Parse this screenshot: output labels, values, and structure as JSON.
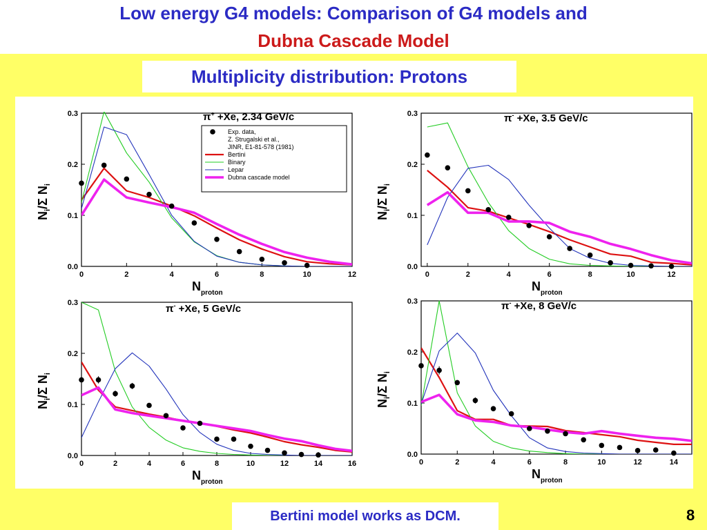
{
  "header": {
    "title_line1": "Low energy G4 models: Comparison of G4 models and",
    "title_line2": "Dubna Cascade Model"
  },
  "subtitle": "Multiplicity distribution: Protons",
  "footer": "Bertini model works as DCM.",
  "page_number": "8",
  "colors": {
    "Bertini": "#dd1111",
    "Binary": "#22cc22",
    "Lepar": "#2233bb",
    "DCM": "#ee22ee",
    "exp": "#000000"
  },
  "chart_data": [
    {
      "type": "line",
      "title": "π+ +Xe, 2.34 GeV/c",
      "title_parts": [
        "π",
        "+",
        " +Xe, 2.34 GeV/c"
      ],
      "xlabel": "N",
      "xlabel_sub": "proton",
      "ylabel_parts": [
        "N",
        "i",
        "/Σ N",
        "i"
      ],
      "xlim": [
        0,
        12
      ],
      "ylim": [
        0,
        0.3
      ],
      "xticks": [
        0,
        2,
        4,
        6,
        8,
        10,
        12
      ],
      "xtick_labels": [
        "0",
        "2",
        "4",
        "6",
        "8",
        "10",
        "12"
      ],
      "yticks": [
        0,
        0.1,
        0.2,
        0.3
      ],
      "ytick_labels": [
        "0.0",
        "0.1",
        "0.2",
        "0.3"
      ],
      "legend": {
        "placement": "top-right",
        "entries": [
          {
            "key": "exp",
            "kind": "marker",
            "lines": [
              "Exp. data,",
              "Z. Strugalski et al.,",
              "JINR, E1-81-578 (1981)"
            ]
          },
          {
            "key": "Bertini",
            "kind": "line",
            "lines": [
              "Bertini"
            ]
          },
          {
            "key": "Binary",
            "kind": "line",
            "lines": [
              "Binary"
            ]
          },
          {
            "key": "Lepar",
            "kind": "line",
            "lines": [
              "Lepar"
            ]
          },
          {
            "key": "DCM",
            "kind": "line",
            "lines": [
              "Dubna cascade model"
            ]
          }
        ]
      },
      "exp": {
        "x": [
          0,
          1,
          2,
          3,
          4,
          5,
          6,
          7,
          8,
          9,
          10
        ],
        "y": [
          0.163,
          0.198,
          0.171,
          0.141,
          0.118,
          0.085,
          0.053,
          0.029,
          0.014,
          0.007,
          0.002
        ],
        "err": [
          0.003,
          0.003,
          0.003,
          0.003,
          0.003,
          0.003,
          0.003,
          0.002,
          0.002,
          0.001,
          0.001
        ]
      },
      "series": [
        {
          "key": "Bertini",
          "x": [
            0,
            1,
            2,
            3,
            4,
            5,
            6,
            7,
            8,
            9,
            10,
            11,
            12
          ],
          "y": [
            0.13,
            0.192,
            0.148,
            0.135,
            0.118,
            0.099,
            0.075,
            0.052,
            0.034,
            0.019,
            0.009,
            0.005,
            0.003
          ]
        },
        {
          "key": "Binary",
          "x": [
            0,
            1,
            2,
            3,
            4,
            5,
            6,
            7,
            8,
            9,
            10,
            11,
            12
          ],
          "y": [
            0.125,
            0.303,
            0.222,
            0.165,
            0.095,
            0.048,
            0.021,
            0.008,
            0.003,
            0.001,
            0.0,
            0.0,
            0.0
          ]
        },
        {
          "key": "Lepar",
          "x": [
            0,
            1,
            2,
            3,
            4,
            5,
            6,
            7,
            8,
            9,
            10,
            11,
            12
          ],
          "y": [
            0.113,
            0.273,
            0.258,
            0.18,
            0.1,
            0.049,
            0.02,
            0.008,
            0.003,
            0.001,
            0.0,
            0.0,
            0.0
          ]
        },
        {
          "key": "DCM",
          "x": [
            0,
            1,
            2,
            3,
            4,
            5,
            6,
            7,
            8,
            9,
            10,
            11,
            12
          ],
          "y": [
            0.1,
            0.17,
            0.135,
            0.125,
            0.116,
            0.105,
            0.083,
            0.062,
            0.044,
            0.028,
            0.017,
            0.009,
            0.004
          ]
        }
      ]
    },
    {
      "type": "line",
      "title": "π- +Xe, 3.5 GeV/c",
      "title_parts": [
        "π",
        "-",
        " +Xe, 3.5 GeV/c"
      ],
      "xlabel": "N",
      "xlabel_sub": "proton",
      "ylabel_parts": [
        "N",
        "i",
        "/Σ N",
        "i"
      ],
      "xlim": [
        -0.3,
        13
      ],
      "ylim": [
        0,
        0.3
      ],
      "xticks": [
        0,
        2,
        4,
        6,
        8,
        10,
        12
      ],
      "xtick_labels": [
        "0",
        "2",
        "4",
        "6",
        "8",
        "10",
        "12"
      ],
      "yticks": [
        0,
        0.1,
        0.2,
        0.3
      ],
      "ytick_labels": [
        "0.0",
        "0.1",
        "0.2",
        "0.3"
      ],
      "exp": {
        "x": [
          0,
          1,
          2,
          3,
          4,
          5,
          6,
          7,
          8,
          9,
          10,
          11,
          12
        ],
        "y": [
          0.218,
          0.193,
          0.148,
          0.111,
          0.096,
          0.08,
          0.058,
          0.035,
          0.022,
          0.007,
          0.002,
          0.001,
          0.0
        ],
        "err": [
          0.003,
          0.003,
          0.003,
          0.004,
          0.003,
          0.003,
          0.003,
          0.004,
          0.003,
          0.002,
          0.001,
          0.001,
          0.0
        ]
      },
      "series": [
        {
          "key": "Bertini",
          "x": [
            0,
            1,
            2,
            3,
            4,
            5,
            6,
            7,
            8,
            9,
            10,
            11,
            12,
            13
          ],
          "y": [
            0.188,
            0.155,
            0.115,
            0.108,
            0.095,
            0.082,
            0.068,
            0.052,
            0.038,
            0.024,
            0.02,
            0.008,
            0.006,
            0.003
          ]
        },
        {
          "key": "Binary",
          "x": [
            0,
            1,
            2,
            3,
            4,
            5,
            6,
            7,
            8,
            9,
            10,
            11,
            12,
            13
          ],
          "y": [
            0.273,
            0.281,
            0.195,
            0.125,
            0.07,
            0.035,
            0.014,
            0.005,
            0.002,
            0.001,
            0.0,
            0.0,
            0.0,
            0.0
          ]
        },
        {
          "key": "Lepar",
          "x": [
            0,
            1,
            2,
            3,
            4,
            5,
            6,
            7,
            8,
            9,
            10,
            11,
            12,
            13
          ],
          "y": [
            0.042,
            0.135,
            0.192,
            0.198,
            0.17,
            0.12,
            0.075,
            0.035,
            0.016,
            0.006,
            0.002,
            0.001,
            0.0,
            0.0
          ]
        },
        {
          "key": "DCM",
          "x": [
            0,
            1,
            2,
            3,
            4,
            5,
            6,
            7,
            8,
            9,
            10,
            11,
            12,
            13
          ],
          "y": [
            0.12,
            0.145,
            0.105,
            0.105,
            0.088,
            0.088,
            0.085,
            0.068,
            0.058,
            0.044,
            0.034,
            0.022,
            0.012,
            0.006
          ]
        }
      ]
    },
    {
      "type": "line",
      "title": "π- +Xe, 5 GeV/c",
      "title_parts": [
        "π",
        "-",
        " +Xe, 5 GeV/c"
      ],
      "xlabel": "N",
      "xlabel_sub": "proton",
      "ylabel_parts": [
        "N",
        "i",
        "/Σ N",
        "i"
      ],
      "xlim": [
        0,
        16
      ],
      "ylim": [
        0,
        0.3
      ],
      "xticks": [
        0,
        2,
        4,
        6,
        8,
        10,
        12,
        14,
        16
      ],
      "xtick_labels": [
        "0",
        "2",
        "4",
        "6",
        "8",
        "10",
        "12",
        "14",
        "16"
      ],
      "yticks": [
        0,
        0.1,
        0.2,
        0.3
      ],
      "ytick_labels": [
        "0.0",
        "0.1",
        "0.2",
        "0.3"
      ],
      "exp": {
        "x": [
          0,
          1,
          2,
          3,
          4,
          5,
          6,
          7,
          8,
          9,
          10,
          11,
          12,
          13,
          14
        ],
        "y": [
          0.148,
          0.148,
          0.121,
          0.136,
          0.098,
          0.078,
          0.054,
          0.063,
          0.032,
          0.032,
          0.018,
          0.01,
          0.005,
          0.002,
          0.001
        ],
        "err": [
          0.007,
          0.007,
          0.006,
          0.006,
          0.004,
          0.003,
          0.003,
          0.003,
          0.003,
          0.003,
          0.002,
          0.002,
          0.001,
          0.001,
          0.001
        ]
      },
      "series": [
        {
          "key": "Bertini",
          "x": [
            0,
            1,
            2,
            3,
            4,
            5,
            6,
            7,
            8,
            9,
            10,
            11,
            12,
            13,
            14,
            15,
            16
          ],
          "y": [
            0.183,
            0.128,
            0.095,
            0.088,
            0.081,
            0.075,
            0.068,
            0.063,
            0.057,
            0.05,
            0.044,
            0.036,
            0.027,
            0.021,
            0.016,
            0.01,
            0.007
          ]
        },
        {
          "key": "Binary",
          "x": [
            0,
            1,
            2,
            3,
            4,
            5,
            6,
            7,
            8,
            9,
            10,
            11,
            12,
            13,
            14,
            15,
            16
          ],
          "y": [
            0.3,
            0.285,
            0.165,
            0.095,
            0.055,
            0.03,
            0.015,
            0.008,
            0.004,
            0.002,
            0.001,
            0.0,
            0.0,
            0.0,
            0.0,
            0.0,
            0.0
          ]
        },
        {
          "key": "Lepar",
          "x": [
            0,
            1,
            2,
            3,
            4,
            5,
            6,
            7,
            8,
            9,
            10,
            11,
            12,
            13,
            14,
            15,
            16
          ],
          "y": [
            0.035,
            0.105,
            0.17,
            0.201,
            0.175,
            0.13,
            0.08,
            0.045,
            0.022,
            0.01,
            0.004,
            0.002,
            0.001,
            0.0,
            0.0,
            0.0,
            0.0
          ]
        },
        {
          "key": "DCM",
          "x": [
            0,
            1,
            2,
            3,
            4,
            5,
            6,
            7,
            8,
            9,
            10,
            11,
            12,
            13,
            14,
            15,
            16
          ],
          "y": [
            0.118,
            0.133,
            0.09,
            0.083,
            0.078,
            0.073,
            0.068,
            0.063,
            0.058,
            0.053,
            0.048,
            0.04,
            0.033,
            0.028,
            0.02,
            0.013,
            0.009
          ]
        }
      ]
    },
    {
      "type": "line",
      "title": "π- +Xe, 8 GeV/c",
      "title_parts": [
        "π",
        "-",
        " +Xe, 8 GeV/c"
      ],
      "xlabel": "N",
      "xlabel_sub": "proton",
      "ylabel_parts": [
        "N",
        "i",
        "/Σ N",
        "i"
      ],
      "xlim": [
        0,
        15
      ],
      "ylim": [
        0,
        0.3
      ],
      "xticks": [
        0,
        2,
        4,
        6,
        8,
        10,
        12,
        14
      ],
      "xtick_labels": [
        "0",
        "2",
        "4",
        "6",
        "8",
        "10",
        "12",
        "14"
      ],
      "yticks": [
        0,
        0.1,
        0.2,
        0.3
      ],
      "ytick_labels": [
        "0.0",
        "0.1",
        "0.2",
        "0.3"
      ],
      "exp": {
        "x": [
          0,
          1,
          2,
          3,
          4,
          5,
          6,
          7,
          8,
          9,
          10,
          11,
          12,
          13,
          14
        ],
        "y": [
          0.173,
          0.164,
          0.14,
          0.105,
          0.089,
          0.079,
          0.05,
          0.045,
          0.04,
          0.028,
          0.017,
          0.013,
          0.007,
          0.008,
          0.002
        ],
        "err": [
          0.01,
          0.008,
          0.005,
          0.006,
          0.005,
          0.004,
          0.003,
          0.005,
          0.003,
          0.004,
          0.004,
          0.002,
          0.002,
          0.003,
          0.001
        ]
      },
      "series": [
        {
          "key": "Bertini",
          "x": [
            0,
            1,
            2,
            3,
            4,
            5,
            6,
            7,
            8,
            9,
            10,
            11,
            12,
            13,
            14,
            15
          ],
          "y": [
            0.208,
            0.15,
            0.085,
            0.068,
            0.068,
            0.056,
            0.055,
            0.054,
            0.046,
            0.042,
            0.038,
            0.034,
            0.027,
            0.023,
            0.019,
            0.019
          ]
        },
        {
          "key": "Binary",
          "x": [
            0,
            1,
            2,
            3,
            4,
            5,
            6,
            7,
            8,
            9,
            10,
            11,
            12,
            13,
            14,
            15
          ],
          "y": [
            0.095,
            0.3,
            0.12,
            0.055,
            0.025,
            0.012,
            0.006,
            0.003,
            0.001,
            0.0,
            0.0,
            0.0,
            0.0,
            0.0,
            0.0,
            0.0
          ]
        },
        {
          "key": "Lepar",
          "x": [
            0,
            1,
            2,
            3,
            4,
            5,
            6,
            7,
            8,
            9,
            10,
            11,
            12,
            13,
            14,
            15
          ],
          "y": [
            0.098,
            0.202,
            0.237,
            0.198,
            0.125,
            0.075,
            0.032,
            0.012,
            0.005,
            0.002,
            0.001,
            0.0,
            0.0,
            0.0,
            0.0,
            0.0
          ]
        },
        {
          "key": "DCM",
          "x": [
            0,
            1,
            2,
            3,
            4,
            5,
            6,
            7,
            8,
            9,
            10,
            11,
            12,
            13,
            14,
            15
          ],
          "y": [
            0.102,
            0.116,
            0.078,
            0.066,
            0.063,
            0.056,
            0.053,
            0.048,
            0.043,
            0.04,
            0.045,
            0.04,
            0.036,
            0.032,
            0.03,
            0.026
          ]
        }
      ]
    }
  ]
}
